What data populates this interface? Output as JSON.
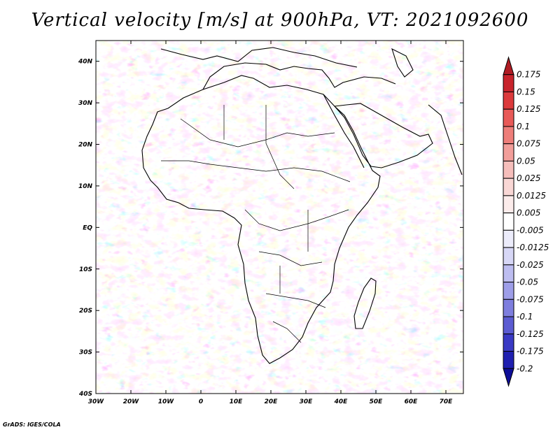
{
  "title": "Vertical velocity [m/s] at 900hPa, VT: 2021092600",
  "footer": "GrADS: IGES/COLA",
  "chart_data": {
    "type": "map",
    "variable": "Vertical velocity",
    "units": "m/s",
    "level": "900hPa",
    "valid_time": "2021092600",
    "lon_range": [
      -30,
      75
    ],
    "lat_range": [
      -40,
      45
    ],
    "x_ticks": [
      {
        "label": "30W",
        "value": -30
      },
      {
        "label": "20W",
        "value": -20
      },
      {
        "label": "10W",
        "value": -10
      },
      {
        "label": "0",
        "value": 0
      },
      {
        "label": "10E",
        "value": 10
      },
      {
        "label": "20E",
        "value": 20
      },
      {
        "label": "30E",
        "value": 30
      },
      {
        "label": "40E",
        "value": 40
      },
      {
        "label": "50E",
        "value": 50
      },
      {
        "label": "60E",
        "value": 60
      },
      {
        "label": "70E",
        "value": 70
      }
    ],
    "y_ticks": [
      {
        "label": "40N",
        "value": 40
      },
      {
        "label": "30N",
        "value": 30
      },
      {
        "label": "20N",
        "value": 20
      },
      {
        "label": "10N",
        "value": 10
      },
      {
        "label": "EQ",
        "value": 0
      },
      {
        "label": "10S",
        "value": -10
      },
      {
        "label": "20S",
        "value": -20
      },
      {
        "label": "30S",
        "value": -30
      },
      {
        "label": "40S",
        "value": -40
      }
    ],
    "colorbar": {
      "labels": [
        "0.175",
        "0.15",
        "0.125",
        "0.1",
        "0.075",
        "0.05",
        "0.025",
        "0.0125",
        "0.005",
        "-0.005",
        "-0.0125",
        "-0.025",
        "-0.05",
        "-0.075",
        "-0.1",
        "-0.125",
        "-0.175",
        "-0.2"
      ],
      "colors": [
        "#b01c24",
        "#c8242c",
        "#dc3a3c",
        "#e85a58",
        "#ee7e7a",
        "#f29e9a",
        "#f6bebb",
        "#f9d7d5",
        "#fceceb",
        "#ffffff",
        "#ececfb",
        "#d7d7f6",
        "#bdbdf0",
        "#9e9ee8",
        "#7e7ede",
        "#5c5cd2",
        "#3a3ac4",
        "#2020b0",
        "#0e0e98"
      ]
    }
  }
}
